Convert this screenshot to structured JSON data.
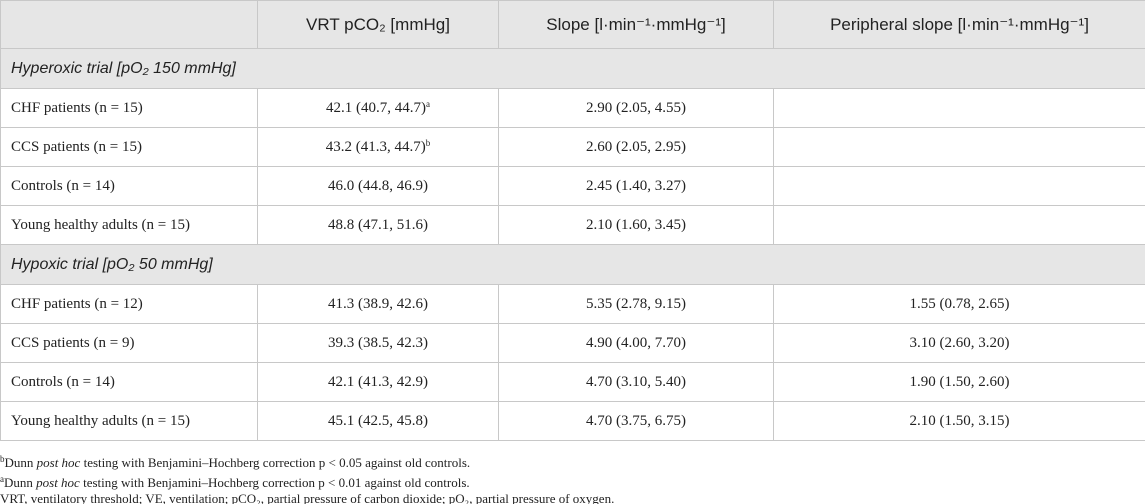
{
  "header": {
    "columns": [
      "VRT pCO₂ [mmHg]",
      "Slope [l·min⁻¹·mmHg⁻¹]",
      "Peripheral slope [l·min⁻¹·mmHg⁻¹]"
    ]
  },
  "sections": [
    {
      "title": "Hyperoxic trial [pO₂ 150 mmHg]",
      "rows": [
        {
          "label": "CHF patients (n = 15)",
          "cells": [
            {
              "text": "42.1 (40.7, 44.7)",
              "note": "a"
            },
            "2.90 (2.05, 4.55)",
            null
          ]
        },
        {
          "label": "CCS patients (n = 15)",
          "cells": [
            {
              "text": "43.2 (41.3, 44.7)",
              "note": "b"
            },
            "2.60 (2.05, 2.95)",
            null
          ]
        },
        {
          "label": "Controls (n = 14)",
          "cells": [
            "46.0 (44.8, 46.9)",
            "2.45 (1.40, 3.27)",
            null
          ]
        },
        {
          "label": "Young healthy adults (n = 15)",
          "cells": [
            "48.8 (47.1, 51.6)",
            "2.10 (1.60, 3.45)",
            null
          ]
        }
      ]
    },
    {
      "title": "Hypoxic trial [pO₂ 50 mmHg]",
      "rows": [
        {
          "label": "CHF patients (n = 12)",
          "cells": [
            "41.3 (38.9, 42.6)",
            "5.35 (2.78, 9.15)",
            "1.55 (0.78, 2.65)"
          ]
        },
        {
          "label": "CCS patients (n = 9)",
          "cells": [
            "39.3 (38.5, 42.3)",
            "4.90 (4.00, 7.70)",
            "3.10 (2.60, 3.20)"
          ]
        },
        {
          "label": "Controls (n = 14)",
          "cells": [
            "42.1 (41.3, 42.9)",
            "4.70 (3.10, 5.40)",
            "1.90 (1.50, 2.60)"
          ]
        },
        {
          "label": "Young healthy adults (n = 15)",
          "cells": [
            "45.1 (42.5, 45.8)",
            "4.70 (3.75, 6.75)",
            "2.10 (1.50, 3.15)"
          ]
        }
      ]
    }
  ],
  "footnotes": [
    {
      "mark": "b",
      "parts": [
        "Dunn ",
        {
          "text": "post hoc",
          "italic": true
        },
        " testing with Benjamini–Hochberg correction p < 0.05 against old controls."
      ]
    },
    {
      "mark": "a",
      "parts": [
        "Dunn ",
        {
          "text": "post hoc",
          "italic": true
        },
        " testing with Benjamini–Hochberg correction p < 0.01 against old controls."
      ]
    },
    {
      "parts": [
        "VRT, ventilatory threshold; VE, ventilation; pCO₂, partial pressure of carbon dioxide; pO₂, partial pressure of oxygen."
      ]
    }
  ]
}
